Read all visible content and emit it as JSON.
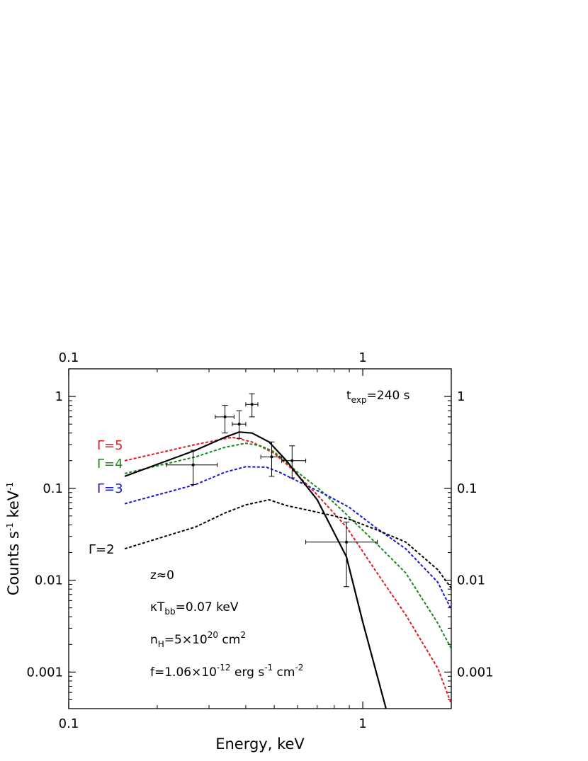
{
  "chart_data": {
    "type": "line",
    "xlabel": "Energy, keV",
    "ylabel": "Counts s⁻¹ keV⁻¹",
    "x_scale": "log",
    "y_scale": "log",
    "xlim": [
      0.1,
      2.0
    ],
    "ylim": [
      0.0004,
      2.0
    ],
    "x_ticks": [
      {
        "value": 0.1,
        "label": "0.1"
      },
      {
        "value": 1,
        "label": "1"
      }
    ],
    "y_ticks": [
      {
        "value": 0.001,
        "label": "0.001"
      },
      {
        "value": 0.01,
        "label": "0.01"
      },
      {
        "value": 0.1,
        "label": "0.1"
      },
      {
        "value": 1,
        "label": "1"
      }
    ],
    "series": [
      {
        "name": "Γ=5",
        "color": "#e41a1c",
        "style": "dashed",
        "x": [
          0.155,
          0.27,
          0.36,
          0.42,
          0.5,
          0.56,
          0.7,
          0.88,
          1.1,
          1.4,
          1.8,
          2.0
        ],
        "y": [
          0.2,
          0.3,
          0.36,
          0.32,
          0.24,
          0.175,
          0.085,
          0.038,
          0.013,
          0.0042,
          0.0011,
          0.00045
        ]
      },
      {
        "name": "Γ=4",
        "color": "#1a8a1a",
        "style": "dashed",
        "x": [
          0.155,
          0.27,
          0.34,
          0.4,
          0.45,
          0.5,
          0.6,
          0.72,
          0.88,
          1.1,
          1.4,
          1.8,
          2.0
        ],
        "y": [
          0.145,
          0.22,
          0.28,
          0.31,
          0.29,
          0.25,
          0.15,
          0.095,
          0.052,
          0.026,
          0.012,
          0.0034,
          0.0018
        ]
      },
      {
        "name": "Γ=3",
        "color": "#1515d8",
        "style": "dashed",
        "x": [
          0.155,
          0.27,
          0.34,
          0.4,
          0.47,
          0.52,
          0.6,
          0.75,
          0.9,
          1.1,
          1.4,
          1.8,
          2.0
        ],
        "y": [
          0.068,
          0.11,
          0.15,
          0.172,
          0.17,
          0.15,
          0.12,
          0.085,
          0.062,
          0.038,
          0.022,
          0.0095,
          0.0048
        ]
      },
      {
        "name": "Γ=2",
        "color": "#000000",
        "style": "dashed",
        "x": [
          0.155,
          0.27,
          0.34,
          0.4,
          0.48,
          0.55,
          0.7,
          0.9,
          1.1,
          1.4,
          1.8,
          2.0
        ],
        "y": [
          0.022,
          0.038,
          0.054,
          0.066,
          0.075,
          0.065,
          0.055,
          0.046,
          0.036,
          0.026,
          0.013,
          0.0082
        ]
      },
      {
        "name": "",
        "color": "#000000",
        "style": "solid",
        "x": [
          0.155,
          0.27,
          0.34,
          0.38,
          0.42,
          0.48,
          0.55,
          0.7,
          0.88,
          1.0,
          1.2
        ],
        "y": [
          0.135,
          0.26,
          0.36,
          0.41,
          0.4,
          0.32,
          0.2,
          0.075,
          0.018,
          0.0035,
          0.0004
        ]
      }
    ],
    "data_points": [
      {
        "x": 0.265,
        "y": 0.18,
        "xerr": [
          0.215,
          0.32
        ],
        "yerr": [
          0.11,
          0.26
        ]
      },
      {
        "x": 0.34,
        "y": 0.6,
        "xerr": [
          0.315,
          0.365
        ],
        "yerr": [
          0.4,
          0.8
        ]
      },
      {
        "x": 0.38,
        "y": 0.5,
        "xerr": [
          0.36,
          0.4
        ],
        "yerr": [
          0.35,
          0.7
        ]
      },
      {
        "x": 0.42,
        "y": 0.82,
        "xerr": [
          0.4,
          0.44
        ],
        "yerr": [
          0.6,
          1.07
        ]
      },
      {
        "x": 0.49,
        "y": 0.22,
        "xerr": [
          0.45,
          0.53
        ],
        "yerr": [
          0.135,
          0.32
        ]
      },
      {
        "x": 0.575,
        "y": 0.2,
        "xerr": [
          0.53,
          0.64
        ],
        "yerr": [
          0.13,
          0.29
        ]
      },
      {
        "x": 0.88,
        "y": 0.026,
        "xerr": [
          0.64,
          1.12
        ],
        "yerr": [
          0.0085,
          0.043
        ]
      }
    ],
    "series_labels": [
      {
        "text": "Γ=5",
        "color": "#e41a1c"
      },
      {
        "text": "Γ=4",
        "color": "#1a8a1a"
      },
      {
        "text": "Γ=3",
        "color": "#1515d8"
      },
      {
        "text": "Γ=2",
        "color": "#000000"
      }
    ],
    "annotations": {
      "exposure": {
        "main": "t",
        "sub": "exp",
        "rest": "=240 s"
      },
      "redshift": "z≈0",
      "temperature": {
        "main": "κT",
        "sub": "bb",
        "rest": "=0.07 keV"
      },
      "column_density": {
        "main": "n",
        "sub": "H",
        "mid": "=5×10",
        "sup": "20",
        "rest": " cm"
      },
      "flux": {
        "main": "f=1.06×10",
        "sup1": "-12",
        "mid": " erg s",
        "sup2": "-1",
        "mid2": " cm",
        "sup3": "-2"
      }
    }
  }
}
